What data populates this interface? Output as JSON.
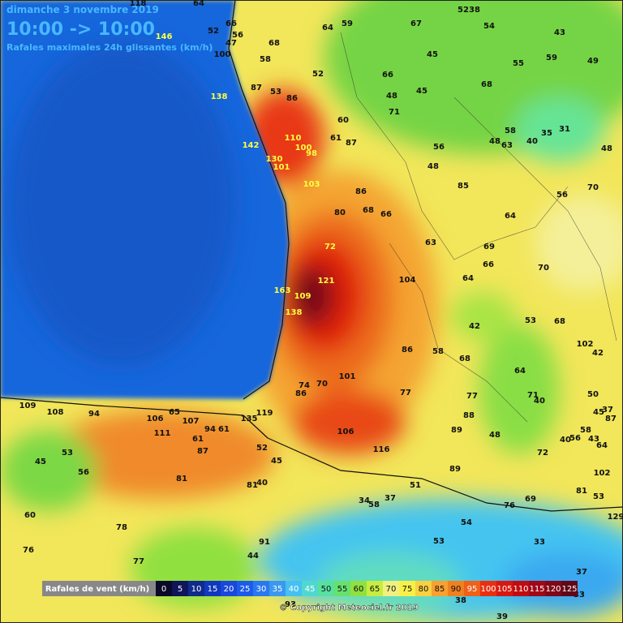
{
  "header": {
    "date": "dimanche 3 novembre 2019",
    "time": "10:00 -> 10:00",
    "subtitle": "Rafales maximales 24h glissantes (km/h)"
  },
  "stations": [
    118,
    64,
    52,
    38,
    66,
    56,
    52,
    146,
    47,
    100,
    68,
    64,
    59,
    67,
    54,
    43,
    45,
    55,
    59,
    49,
    58,
    52,
    66,
    48,
    45,
    68,
    87,
    53,
    86,
    138,
    71,
    60,
    61,
    87,
    110,
    100,
    98,
    142,
    130,
    101,
    56,
    58,
    48,
    63,
    40,
    35,
    31,
    48,
    48,
    103,
    86,
    85,
    56,
    70,
    80,
    68,
    66,
    64,
    63,
    72,
    69,
    66,
    70,
    121,
    104,
    64,
    163,
    109,
    138,
    53,
    68,
    42,
    102,
    42,
    86,
    58,
    68,
    64,
    74,
    70,
    101,
    86,
    77,
    71,
    40,
    50,
    37,
    45,
    87,
    109,
    108,
    94,
    65,
    106,
    107,
    119,
    135,
    94,
    61,
    77,
    88,
    89,
    111,
    61,
    106,
    48,
    40,
    56,
    58,
    43,
    64,
    53,
    87,
    52,
    45,
    116,
    72,
    45,
    56,
    89,
    102,
    81,
    81,
    40,
    51,
    81,
    53,
    34,
    58,
    37,
    76,
    69,
    129,
    60,
    54,
    78,
    33,
    91,
    53,
    76,
    44,
    77,
    37,
    93,
    38,
    39,
    33
  ],
  "legend": {
    "title": "Rafales de vent (km/h)",
    "values": [
      0,
      5,
      10,
      15,
      20,
      25,
      30,
      35,
      40,
      45,
      50,
      55,
      60,
      65,
      70,
      75,
      80,
      85,
      90,
      95,
      100,
      105,
      110,
      115,
      120,
      125
    ],
    "colors": [
      "#0a0a28",
      "#10145a",
      "#102a8c",
      "#1238c0",
      "#1848dc",
      "#1c5ce8",
      "#2a78f0",
      "#3a98f0",
      "#46c0f0",
      "#50d8d0",
      "#58e0a0",
      "#68e070",
      "#90e040",
      "#c8ec40",
      "#f0f080",
      "#f8f048",
      "#f8d040",
      "#f8a030",
      "#f08020",
      "#f06018",
      "#e83010",
      "#d81810",
      "#c00c10",
      "#a00818",
      "#800818",
      "#600818"
    ]
  },
  "copyright": "© Copyright Meteociel.fr 2019"
}
